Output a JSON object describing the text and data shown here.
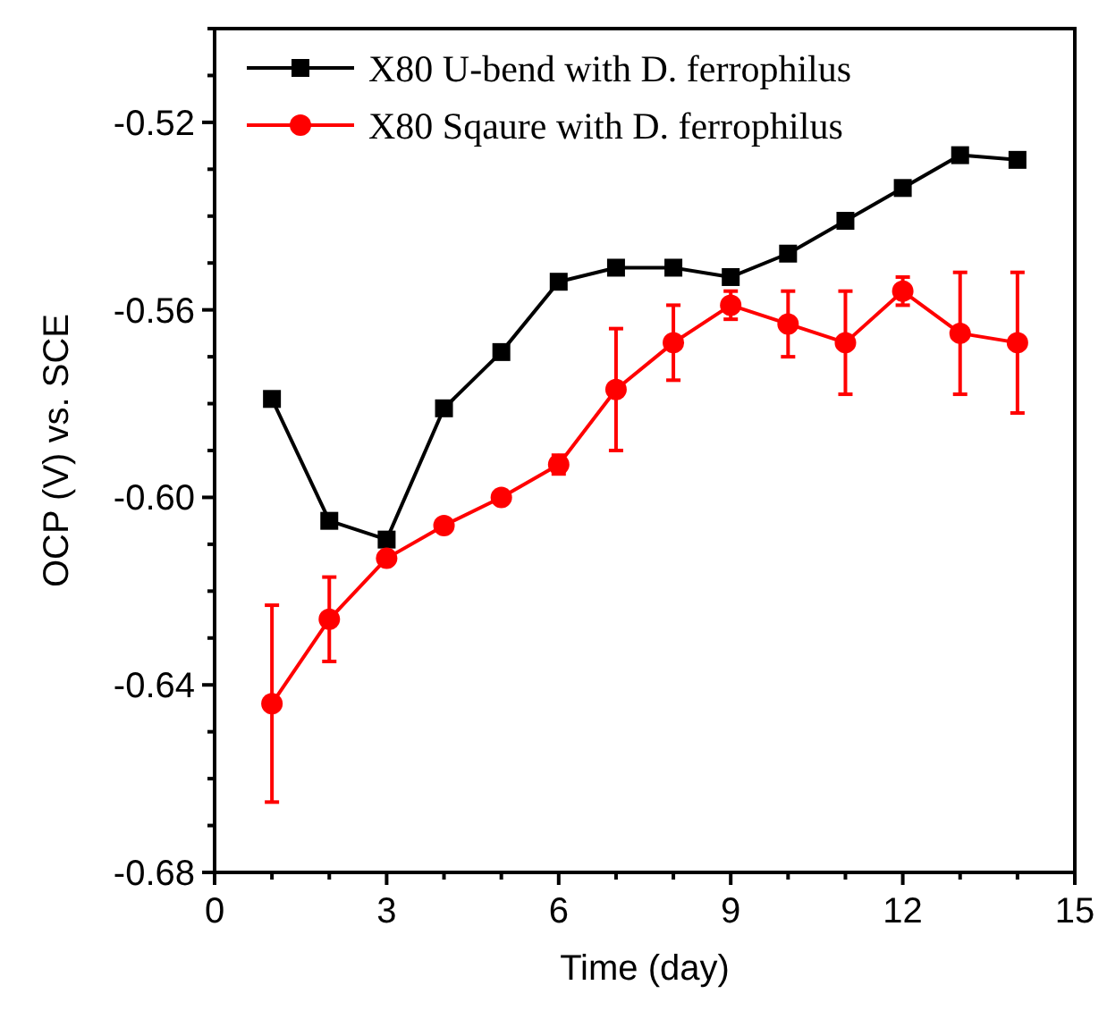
{
  "chart_data": {
    "type": "line",
    "xlabel": "Time (day)",
    "ylabel": "OCP (V) vs. SCE",
    "x": [
      1,
      2,
      3,
      4,
      5,
      6,
      7,
      8,
      9,
      10,
      11,
      12,
      13,
      14
    ],
    "series": [
      {
        "name": "X80 U-bend with D. ferrophilus",
        "color": "#000000",
        "marker": "square",
        "values": [
          -0.579,
          -0.605,
          -0.609,
          -0.581,
          -0.569,
          -0.554,
          -0.551,
          -0.551,
          -0.553,
          -0.548,
          -0.541,
          -0.534,
          -0.527,
          -0.528
        ]
      },
      {
        "name": "X80 Sqaure with D. ferrophilus",
        "color": "#ff0000",
        "marker": "circle",
        "values": [
          -0.644,
          -0.626,
          -0.613,
          -0.606,
          -0.6,
          -0.593,
          -0.577,
          -0.567,
          -0.559,
          -0.563,
          -0.567,
          -0.556,
          -0.565,
          -0.567
        ],
        "errors": [
          0.021,
          0.009,
          null,
          null,
          null,
          0.002,
          0.013,
          0.008,
          0.003,
          0.007,
          0.011,
          0.003,
          0.013,
          0.015
        ]
      }
    ],
    "xlim": [
      0,
      15
    ],
    "xticks": [
      0,
      {
        "value": 1,
        "label": null
      },
      {
        "value": 2,
        "label": null
      },
      3,
      {
        "value": 4,
        "label": null
      },
      {
        "value": 5,
        "label": null
      },
      6,
      {
        "value": 7,
        "label": null
      },
      {
        "value": 8,
        "label": null
      },
      9,
      {
        "value": 10,
        "label": null
      },
      {
        "value": 11,
        "label": null
      },
      12,
      {
        "value": 13,
        "label": null
      },
      {
        "value": 14,
        "label": null
      },
      15
    ],
    "ylim": [
      -0.68,
      -0.5
    ],
    "yticks": [
      {
        "value": -0.68,
        "label": "-0.68"
      },
      {
        "value": -0.67,
        "label": null
      },
      {
        "value": -0.66,
        "label": null
      },
      {
        "value": -0.65,
        "label": null
      },
      {
        "value": -0.64,
        "label": "-0.64"
      },
      {
        "value": -0.63,
        "label": null
      },
      {
        "value": -0.62,
        "label": null
      },
      {
        "value": -0.61,
        "label": null
      },
      {
        "value": -0.6,
        "label": "-0.60"
      },
      {
        "value": -0.59,
        "label": null
      },
      {
        "value": -0.58,
        "label": null
      },
      {
        "value": -0.57,
        "label": null
      },
      {
        "value": -0.56,
        "label": "-0.56"
      },
      {
        "value": -0.55,
        "label": null
      },
      {
        "value": -0.54,
        "label": null
      },
      {
        "value": -0.53,
        "label": null
      },
      {
        "value": -0.52,
        "label": "-0.52"
      },
      {
        "value": -0.51,
        "label": null
      },
      {
        "value": -0.5,
        "label": null
      }
    ],
    "grid": false,
    "legend": "top left",
    "line_style": "solid"
  }
}
